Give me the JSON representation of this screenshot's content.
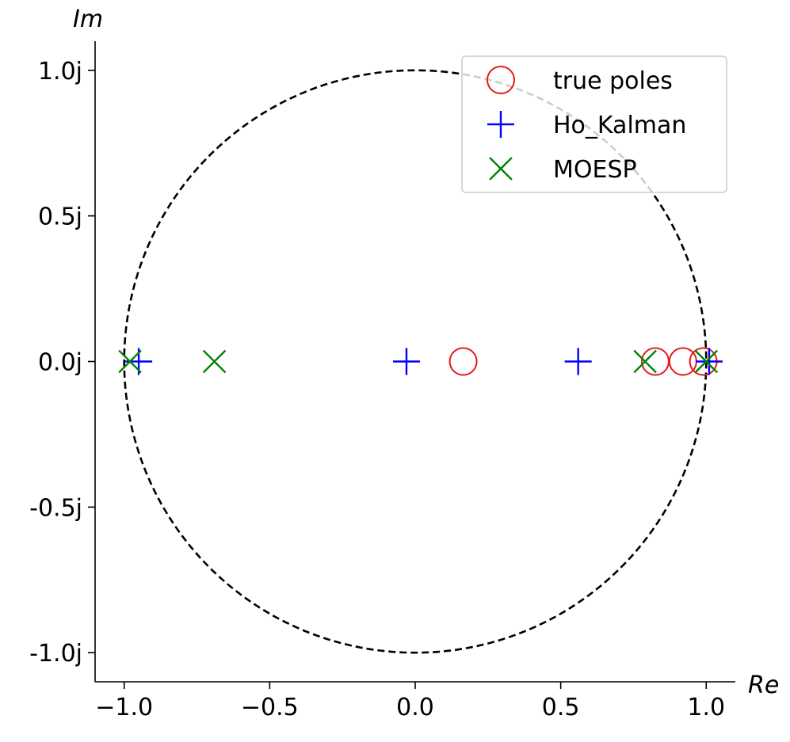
{
  "chart_data": {
    "type": "scatter",
    "xlabel": "Re",
    "ylabel": "Im",
    "xlim": [
      -1.1,
      1.1
    ],
    "ylim": [
      -1.1,
      1.1
    ],
    "x_ticks": [
      {
        "value": -1.0,
        "label": "−1.0"
      },
      {
        "value": -0.5,
        "label": "−0.5"
      },
      {
        "value": 0.0,
        "label": "0.0"
      },
      {
        "value": 0.5,
        "label": "0.5"
      },
      {
        "value": 1.0,
        "label": "1.0"
      }
    ],
    "y_ticks": [
      {
        "value": 1.0,
        "label": "1.0j"
      },
      {
        "value": 0.5,
        "label": "0.5j"
      },
      {
        "value": 0.0,
        "label": "0.0j"
      },
      {
        "value": -0.5,
        "label": "-0.5j"
      },
      {
        "value": -1.0,
        "label": "-1.0j"
      }
    ],
    "grid": false,
    "unit_circle": {
      "radius": 1.0,
      "style": "dashed",
      "color": "#000000"
    },
    "legend": {
      "position": "top-right"
    },
    "series": [
      {
        "name": "true poles",
        "marker": "circle",
        "color": "#e41a1c",
        "points": [
          {
            "re": 0.165,
            "im": 0.0
          },
          {
            "re": 0.825,
            "im": 0.0
          },
          {
            "re": 0.92,
            "im": 0.0
          },
          {
            "re": 0.99,
            "im": 0.0
          }
        ]
      },
      {
        "name": "Ho_Kalman",
        "marker": "plus",
        "color": "#0000ff",
        "points": [
          {
            "re": -0.95,
            "im": 0.0
          },
          {
            "re": -0.03,
            "im": 0.0
          },
          {
            "re": 0.56,
            "im": 0.0
          },
          {
            "re": 1.01,
            "im": 0.0
          }
        ]
      },
      {
        "name": "MOESP",
        "marker": "x",
        "color": "#008000",
        "points": [
          {
            "re": -0.98,
            "im": 0.0
          },
          {
            "re": -0.69,
            "im": 0.0
          },
          {
            "re": 0.79,
            "im": 0.0
          },
          {
            "re": 1.0,
            "im": 0.0
          }
        ]
      }
    ]
  }
}
